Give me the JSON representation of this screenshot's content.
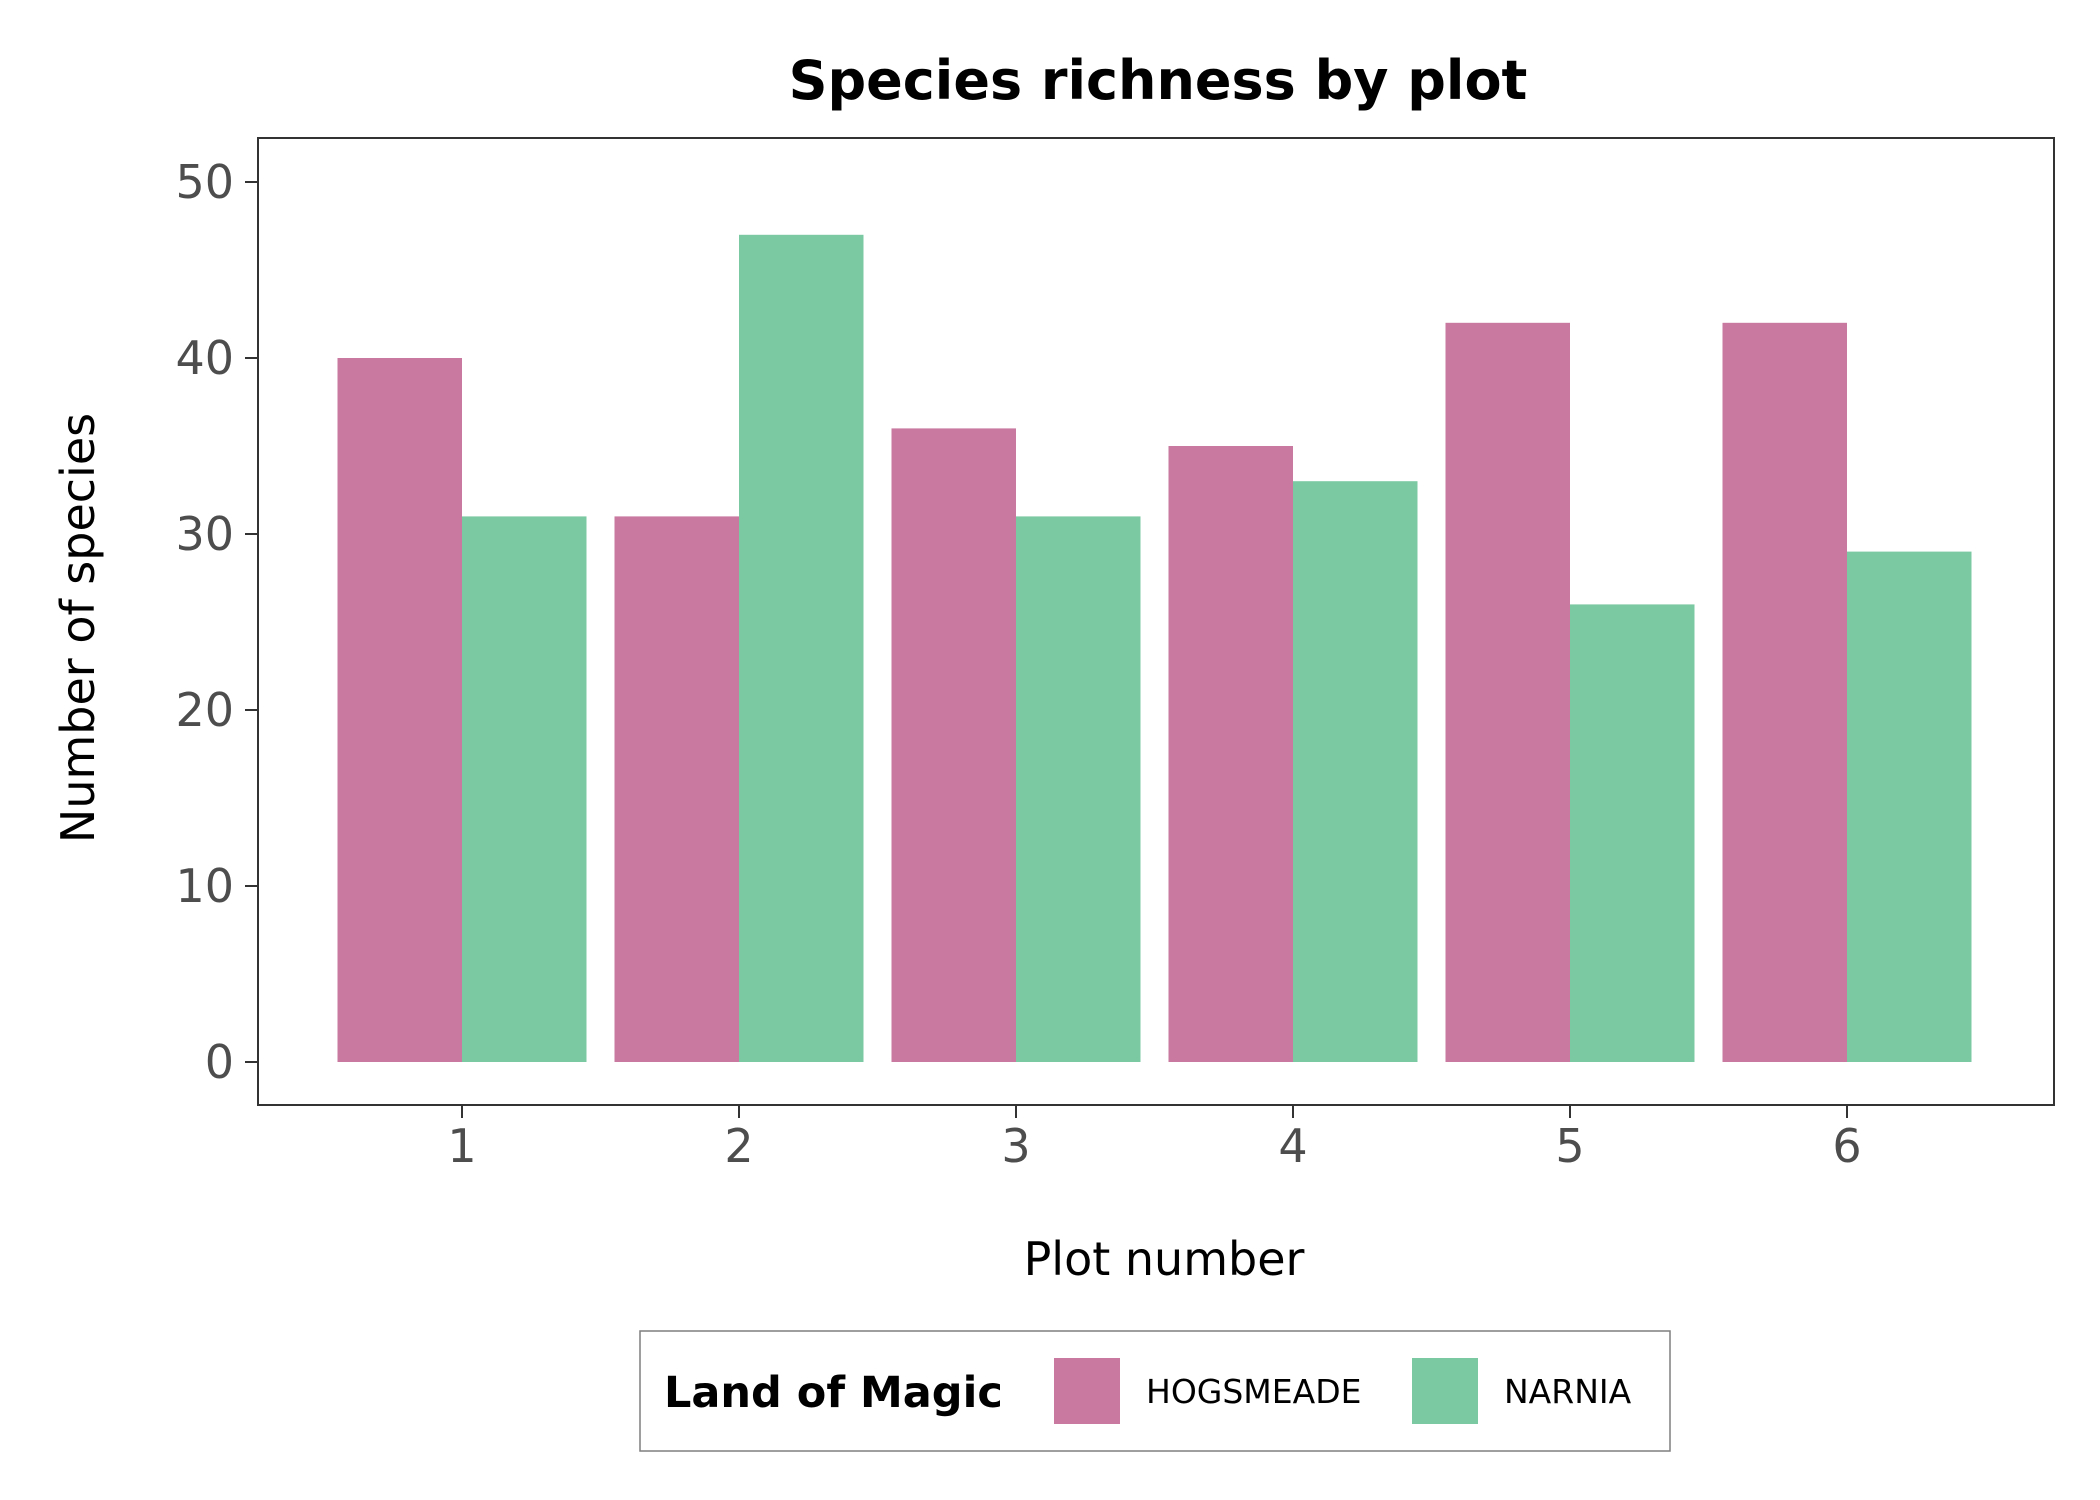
{
  "chart_data": {
    "type": "bar",
    "title": "Species richness by plot",
    "xlabel": "Plot number",
    "ylabel": "Number of species",
    "categories": [
      "1",
      "2",
      "3",
      "4",
      "5",
      "6"
    ],
    "series": [
      {
        "name": "HOGSMEADE",
        "values": [
          40,
          31,
          36,
          35,
          42,
          42
        ],
        "color": "#c9799f"
      },
      {
        "name": "NARNIA",
        "values": [
          31,
          47,
          31,
          33,
          26,
          29
        ],
        "color": "#7bc9a2"
      }
    ],
    "ylim": [
      0,
      50
    ],
    "yticks": [
      0,
      10,
      20,
      30,
      40,
      50
    ],
    "grid": false,
    "legend": {
      "title": "Land of Magic",
      "position": "bottom"
    }
  }
}
